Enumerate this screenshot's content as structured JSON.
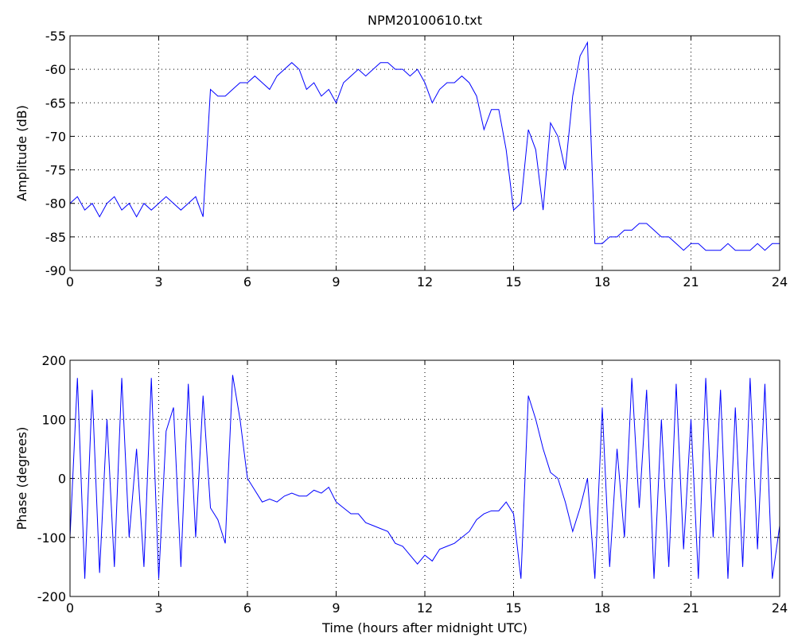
{
  "chart_data": [
    {
      "type": "line",
      "title": "NPM20100610.txt",
      "ylabel": "Amplitude (dB)",
      "grid": true,
      "xlim": [
        0,
        24
      ],
      "xticks": [
        0,
        3,
        6,
        9,
        12,
        15,
        18,
        21,
        24
      ],
      "ylim": [
        -90,
        -55
      ],
      "yticks": [
        -90,
        -85,
        -80,
        -75,
        -70,
        -65,
        -60,
        -55
      ],
      "x": [
        0,
        0.25,
        0.5,
        0.75,
        1,
        1.25,
        1.5,
        1.75,
        2,
        2.25,
        2.5,
        2.75,
        3,
        3.25,
        3.5,
        3.75,
        4,
        4.25,
        4.5,
        4.75,
        5,
        5.25,
        5.5,
        5.75,
        6,
        6.25,
        6.5,
        6.75,
        7,
        7.25,
        7.5,
        7.75,
        8,
        8.25,
        8.5,
        8.75,
        9,
        9.25,
        9.5,
        9.75,
        10,
        10.25,
        10.5,
        10.75,
        11,
        11.25,
        11.5,
        11.75,
        12,
        12.25,
        12.5,
        12.75,
        13,
        13.25,
        13.5,
        13.75,
        14,
        14.25,
        14.5,
        14.75,
        15,
        15.25,
        15.5,
        15.75,
        16,
        16.25,
        16.5,
        16.75,
        17,
        17.25,
        17.5,
        17.75,
        18,
        18.25,
        18.5,
        18.75,
        19,
        19.25,
        19.5,
        19.75,
        20,
        20.25,
        20.5,
        20.75,
        21,
        21.25,
        21.5,
        21.75,
        22,
        22.25,
        22.5,
        22.75,
        23,
        23.25,
        23.5,
        23.75,
        24
      ],
      "series": [
        {
          "color": "#0000ff",
          "values": [
            -80,
            -79,
            -81,
            -80,
            -82,
            -80,
            -79,
            -81,
            -80,
            -82,
            -80,
            -81,
            -80,
            -79,
            -80,
            -81,
            -80,
            -79,
            -82,
            -63,
            -64,
            -64,
            -63,
            -62,
            -62,
            -61,
            -62,
            -63,
            -61,
            -60,
            -59,
            -60,
            -63,
            -62,
            -64,
            -63,
            -65,
            -62,
            -61,
            -60,
            -61,
            -60,
            -59,
            -59,
            -60,
            -60,
            -61,
            -60,
            -62,
            -65,
            -63,
            -62,
            -62,
            -61,
            -62,
            -64,
            -69,
            -66,
            -66,
            -72,
            -81,
            -80,
            -69,
            -72,
            -81,
            -68,
            -70,
            -75,
            -64,
            -58,
            -56,
            -86,
            -86,
            -85,
            -85,
            -84,
            -84,
            -83,
            -83,
            -84,
            -85,
            -85,
            -86,
            -87,
            -86,
            -86,
            -87,
            -87,
            -87,
            -86,
            -87,
            -87,
            -87,
            -86,
            -87,
            -86,
            -86
          ]
        }
      ]
    },
    {
      "type": "line",
      "ylabel": "Phase (degrees)",
      "xlabel": "Time (hours after midnight UTC)",
      "grid": true,
      "xlim": [
        0,
        24
      ],
      "xticks": [
        0,
        3,
        6,
        9,
        12,
        15,
        18,
        21,
        24
      ],
      "ylim": [
        -200,
        200
      ],
      "yticks": [
        -200,
        -100,
        0,
        100,
        200
      ],
      "x": [
        0,
        0.25,
        0.5,
        0.75,
        1,
        1.25,
        1.5,
        1.75,
        2,
        2.25,
        2.5,
        2.75,
        3,
        3.25,
        3.5,
        3.75,
        4,
        4.25,
        4.5,
        4.75,
        5,
        5.25,
        5.5,
        5.75,
        6,
        6.25,
        6.5,
        6.75,
        7,
        7.25,
        7.5,
        7.75,
        8,
        8.25,
        8.5,
        8.75,
        9,
        9.25,
        9.5,
        9.75,
        10,
        10.25,
        10.5,
        10.75,
        11,
        11.25,
        11.5,
        11.75,
        12,
        12.25,
        12.5,
        12.75,
        13,
        13.25,
        13.5,
        13.75,
        14,
        14.25,
        14.5,
        14.75,
        15,
        15.25,
        15.5,
        15.75,
        16,
        16.25,
        16.5,
        16.75,
        17,
        17.25,
        17.5,
        17.75,
        18,
        18.25,
        18.5,
        18.75,
        19,
        19.25,
        19.5,
        19.75,
        20,
        20.25,
        20.5,
        20.75,
        21,
        21.25,
        21.5,
        21.75,
        22,
        22.25,
        22.5,
        22.75,
        23,
        23.25,
        23.5,
        23.75,
        24
      ],
      "series": [
        {
          "color": "#0000ff",
          "values": [
            -100,
            170,
            -170,
            150,
            -160,
            100,
            -150,
            170,
            -100,
            50,
            -150,
            170,
            -170,
            80,
            120,
            -150,
            160,
            -100,
            140,
            -50,
            -70,
            -110,
            175,
            100,
            0,
            -20,
            -40,
            -35,
            -40,
            -30,
            -25,
            -30,
            -30,
            -20,
            -25,
            -15,
            -40,
            -50,
            -60,
            -60,
            -75,
            -80,
            -85,
            -90,
            -110,
            -115,
            -130,
            -145,
            -130,
            -140,
            -120,
            -115,
            -110,
            -100,
            -90,
            -70,
            -60,
            -55,
            -55,
            -40,
            -60,
            -170,
            140,
            100,
            50,
            10,
            0,
            -40,
            -90,
            -50,
            0,
            -170,
            120,
            -150,
            50,
            -100,
            170,
            -50,
            150,
            -170,
            100,
            -150,
            160,
            -120,
            100,
            -170,
            170,
            -100,
            150,
            -170,
            120,
            -150,
            170,
            -120,
            160,
            -170,
            -80
          ]
        }
      ]
    }
  ]
}
